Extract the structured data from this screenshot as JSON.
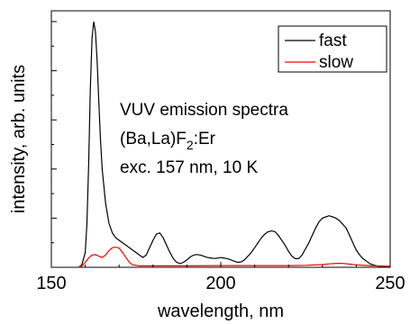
{
  "chart_data": {
    "type": "line",
    "xlabel": "wavelength, nm",
    "ylabel": "intensity, arb. units",
    "xlim": [
      150,
      250
    ],
    "ylim": [
      0,
      1.0
    ],
    "x_ticks": [
      150,
      200,
      250
    ],
    "grid": false,
    "legend_placement": "top-right",
    "annotation": {
      "line1": "VUV emission spectra",
      "line2_main": "(Ba,La)F",
      "line2_sub": "2",
      "line2_tail": ":Er",
      "line3": "exc. 157 nm, 10 K"
    },
    "series": [
      {
        "name": "fast",
        "color": "#000000",
        "x": [
          158,
          159,
          160,
          160.5,
          161,
          161.5,
          162,
          162.5,
          163,
          163.5,
          164,
          164.5,
          165,
          166,
          167,
          168,
          169,
          170,
          172,
          174,
          176,
          177,
          178,
          179,
          180,
          181,
          182,
          183,
          184,
          185,
          186,
          187,
          188,
          189,
          190,
          191,
          192,
          193,
          194,
          195,
          196,
          197,
          198,
          199,
          200,
          202,
          204,
          205,
          206,
          207,
          208,
          209,
          210,
          211,
          212,
          213,
          214,
          215,
          216,
          217,
          218,
          219,
          220,
          221,
          222,
          223,
          224,
          225,
          226,
          227,
          228,
          229,
          230,
          231,
          232,
          233,
          234,
          235,
          236,
          237,
          238,
          239,
          240,
          241,
          242,
          243,
          244,
          245,
          246,
          247,
          248,
          249,
          250
        ],
        "y": [
          0,
          0.01,
          0.06,
          0.18,
          0.42,
          0.72,
          0.93,
          1.0,
          0.96,
          0.84,
          0.68,
          0.52,
          0.4,
          0.26,
          0.18,
          0.14,
          0.12,
          0.11,
          0.09,
          0.07,
          0.05,
          0.04,
          0.05,
          0.08,
          0.11,
          0.135,
          0.14,
          0.12,
          0.09,
          0.06,
          0.035,
          0.02,
          0.015,
          0.02,
          0.03,
          0.042,
          0.05,
          0.052,
          0.05,
          0.045,
          0.04,
          0.038,
          0.036,
          0.037,
          0.04,
          0.035,
          0.025,
          0.02,
          0.022,
          0.03,
          0.045,
          0.06,
          0.08,
          0.1,
          0.12,
          0.135,
          0.145,
          0.148,
          0.145,
          0.13,
          0.11,
          0.09,
          0.065,
          0.045,
          0.035,
          0.035,
          0.05,
          0.075,
          0.1,
          0.13,
          0.16,
          0.185,
          0.2,
          0.205,
          0.21,
          0.205,
          0.2,
          0.19,
          0.175,
          0.16,
          0.13,
          0.1,
          0.07,
          0.05,
          0.035,
          0.025,
          0.015,
          0.01,
          0.006,
          0.004,
          0.002,
          0.001,
          0
        ]
      },
      {
        "name": "slow",
        "color": "#ff0000",
        "x": [
          158,
          159,
          160,
          161,
          162,
          163,
          164,
          165,
          166,
          167,
          168,
          169,
          170,
          171,
          172,
          173,
          174,
          175,
          176,
          178,
          180,
          185,
          190,
          200,
          210,
          220,
          225,
          230,
          232,
          234,
          236,
          238,
          240,
          245,
          250
        ],
        "y": [
          0,
          0.005,
          0.02,
          0.038,
          0.05,
          0.052,
          0.045,
          0.04,
          0.05,
          0.068,
          0.08,
          0.082,
          0.078,
          0.06,
          0.04,
          0.02,
          0.01,
          0.008,
          0.006,
          0.006,
          0.006,
          0.006,
          0.006,
          0.007,
          0.007,
          0.007,
          0.008,
          0.011,
          0.014,
          0.016,
          0.016,
          0.013,
          0.01,
          0.006,
          0.004
        ]
      }
    ]
  }
}
